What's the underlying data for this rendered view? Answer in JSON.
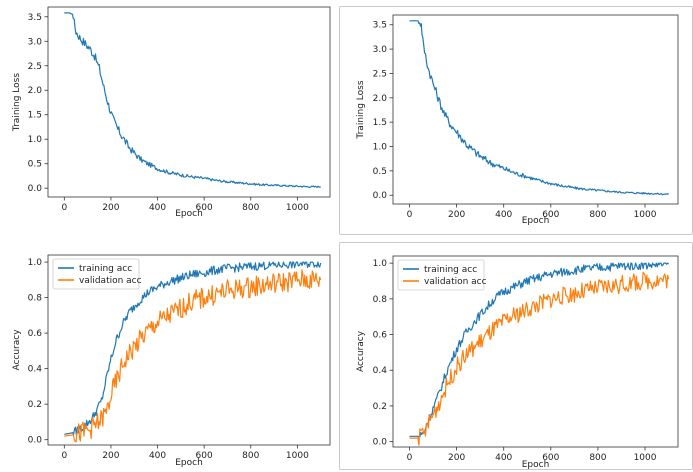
{
  "colors": {
    "blue": "#1f77b4",
    "orange": "#ff7f0e",
    "axes": "#333333"
  },
  "chart_data": [
    {
      "type": "line",
      "xlabel": "Epoch",
      "ylabel": "Training Loss",
      "xlim": [
        -70,
        1140
      ],
      "ylim": [
        -0.18,
        3.7
      ],
      "xticks": [
        0,
        200,
        400,
        600,
        800,
        1000
      ],
      "yticks": [
        0.0,
        0.5,
        1.0,
        1.5,
        2.0,
        2.5,
        3.0,
        3.5
      ],
      "ytick_labels": [
        "0.0",
        "0.5",
        "1.0",
        "1.5",
        "2.0",
        "2.5",
        "3.0",
        "3.5"
      ],
      "legend": null,
      "series": [
        {
          "color": "#1f77b4",
          "x": [
            0,
            20,
            35,
            50,
            70,
            90,
            110,
            130,
            150,
            170,
            190,
            210,
            230,
            250,
            275,
            300,
            325,
            350,
            375,
            400,
            450,
            500,
            550,
            600,
            650,
            700,
            750,
            800,
            850,
            900,
            950,
            1000,
            1050,
            1100
          ],
          "y": [
            3.58,
            3.58,
            3.55,
            3.2,
            3.05,
            2.95,
            2.85,
            2.7,
            2.45,
            2.05,
            1.7,
            1.4,
            1.2,
            1.05,
            0.85,
            0.72,
            0.6,
            0.52,
            0.46,
            0.4,
            0.32,
            0.27,
            0.23,
            0.2,
            0.16,
            0.13,
            0.11,
            0.09,
            0.07,
            0.06,
            0.05,
            0.04,
            0.03,
            0.03
          ],
          "noise": 0.09
        }
      ]
    },
    {
      "type": "line",
      "xlabel": "Epoch",
      "ylabel": "Training Loss",
      "xlim": [
        -70,
        1140
      ],
      "ylim": [
        -0.18,
        3.7
      ],
      "xticks": [
        0,
        200,
        400,
        600,
        800,
        1000
      ],
      "yticks": [
        0.0,
        0.5,
        1.0,
        1.5,
        2.0,
        2.5,
        3.0,
        3.5
      ],
      "ytick_labels": [
        "0.0",
        "0.5",
        "1.0",
        "1.5",
        "2.0",
        "2.5",
        "3.0",
        "3.5"
      ],
      "legend": null,
      "series": [
        {
          "color": "#1f77b4",
          "x": [
            0,
            20,
            40,
            50,
            60,
            80,
            100,
            125,
            150,
            175,
            200,
            225,
            250,
            275,
            300,
            350,
            400,
            450,
            500,
            550,
            600,
            650,
            700,
            750,
            800,
            850,
            900,
            950,
            1000,
            1050,
            1100
          ],
          "y": [
            3.58,
            3.58,
            3.58,
            3.5,
            3.05,
            2.6,
            2.3,
            1.95,
            1.65,
            1.45,
            1.3,
            1.15,
            1.0,
            0.9,
            0.8,
            0.65,
            0.55,
            0.45,
            0.38,
            0.3,
            0.24,
            0.19,
            0.15,
            0.12,
            0.1,
            0.08,
            0.06,
            0.05,
            0.04,
            0.03,
            0.02
          ],
          "noise": 0.09
        }
      ]
    },
    {
      "type": "line",
      "xlabel": "Epoch",
      "ylabel": "Accuracy",
      "xlim": [
        -70,
        1140
      ],
      "ylim": [
        -0.03,
        1.04
      ],
      "xticks": [
        0,
        200,
        400,
        600,
        800,
        1000
      ],
      "yticks": [
        0.0,
        0.2,
        0.4,
        0.6,
        0.8,
        1.0
      ],
      "ytick_labels": [
        "0.0",
        "0.2",
        "0.4",
        "0.6",
        "0.8",
        "1.0"
      ],
      "legend": "top-left",
      "series": [
        {
          "name": "training acc",
          "color": "#1f77b4",
          "x": [
            0,
            40,
            80,
            120,
            160,
            190,
            220,
            250,
            280,
            320,
            360,
            400,
            450,
            500,
            550,
            600,
            650,
            700,
            800,
            900,
            1000,
            1100
          ],
          "y": [
            0.03,
            0.04,
            0.07,
            0.12,
            0.22,
            0.4,
            0.55,
            0.65,
            0.72,
            0.78,
            0.83,
            0.86,
            0.89,
            0.91,
            0.93,
            0.94,
            0.955,
            0.965,
            0.975,
            0.985,
            0.99,
            0.995
          ],
          "noise": 0.025
        },
        {
          "name": "validation acc",
          "color": "#ff7f0e",
          "x": [
            0,
            50,
            100,
            150,
            180,
            200,
            230,
            260,
            300,
            350,
            400,
            450,
            500,
            550,
            600,
            650,
            700,
            800,
            900,
            1000,
            1100
          ],
          "y": [
            0.02,
            0.03,
            0.05,
            0.1,
            0.15,
            0.25,
            0.35,
            0.45,
            0.52,
            0.6,
            0.66,
            0.7,
            0.74,
            0.78,
            0.8,
            0.82,
            0.84,
            0.86,
            0.88,
            0.9,
            0.9
          ],
          "noise": 0.06
        }
      ]
    },
    {
      "type": "line",
      "xlabel": "Epoch",
      "ylabel": "Accuracy",
      "xlim": [
        -70,
        1140
      ],
      "ylim": [
        -0.03,
        1.04
      ],
      "xticks": [
        0,
        200,
        400,
        600,
        800,
        1000
      ],
      "yticks": [
        0.0,
        0.2,
        0.4,
        0.6,
        0.8,
        1.0
      ],
      "ytick_labels": [
        "0.0",
        "0.2",
        "0.4",
        "0.6",
        "0.8",
        "1.0"
      ],
      "legend": "top-left",
      "series": [
        {
          "name": "training acc",
          "color": "#1f77b4",
          "x": [
            0,
            40,
            60,
            80,
            120,
            160,
            200,
            240,
            280,
            320,
            360,
            400,
            450,
            500,
            550,
            600,
            700,
            800,
            900,
            1000,
            1100
          ],
          "y": [
            0.03,
            0.03,
            0.05,
            0.12,
            0.25,
            0.4,
            0.52,
            0.61,
            0.68,
            0.74,
            0.8,
            0.84,
            0.87,
            0.9,
            0.92,
            0.94,
            0.96,
            0.975,
            0.985,
            0.99,
            0.995
          ],
          "noise": 0.025
        },
        {
          "name": "validation acc",
          "color": "#ff7f0e",
          "x": [
            0,
            40,
            60,
            80,
            120,
            160,
            200,
            250,
            300,
            350,
            400,
            450,
            500,
            550,
            600,
            700,
            800,
            900,
            1000,
            1100
          ],
          "y": [
            0.02,
            0.02,
            0.04,
            0.1,
            0.2,
            0.32,
            0.42,
            0.5,
            0.56,
            0.62,
            0.67,
            0.71,
            0.74,
            0.77,
            0.8,
            0.83,
            0.86,
            0.88,
            0.9,
            0.91
          ],
          "noise": 0.05
        }
      ]
    }
  ]
}
